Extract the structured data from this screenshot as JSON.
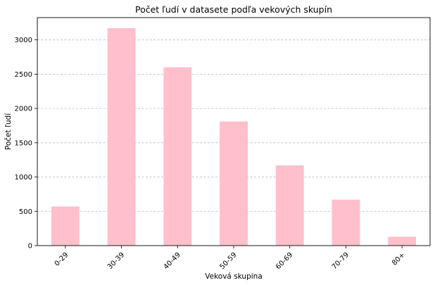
{
  "chart_data": {
    "type": "bar",
    "title": "Počet ľudí v datasete podľa vekových skupín",
    "xlabel": "Veková skupina",
    "ylabel": "Počet ľudí",
    "categories": [
      "0-29",
      "30-39",
      "40-49",
      "50-59",
      "60-69",
      "70-79",
      "80+"
    ],
    "values": [
      570,
      3170,
      2600,
      1810,
      1170,
      670,
      130
    ],
    "ylim": [
      0,
      3325
    ],
    "yticks": [
      0,
      500,
      1000,
      1500,
      2000,
      2500,
      3000
    ],
    "grid": "y",
    "legend": "none",
    "bar_color": "#ffc0cb"
  }
}
